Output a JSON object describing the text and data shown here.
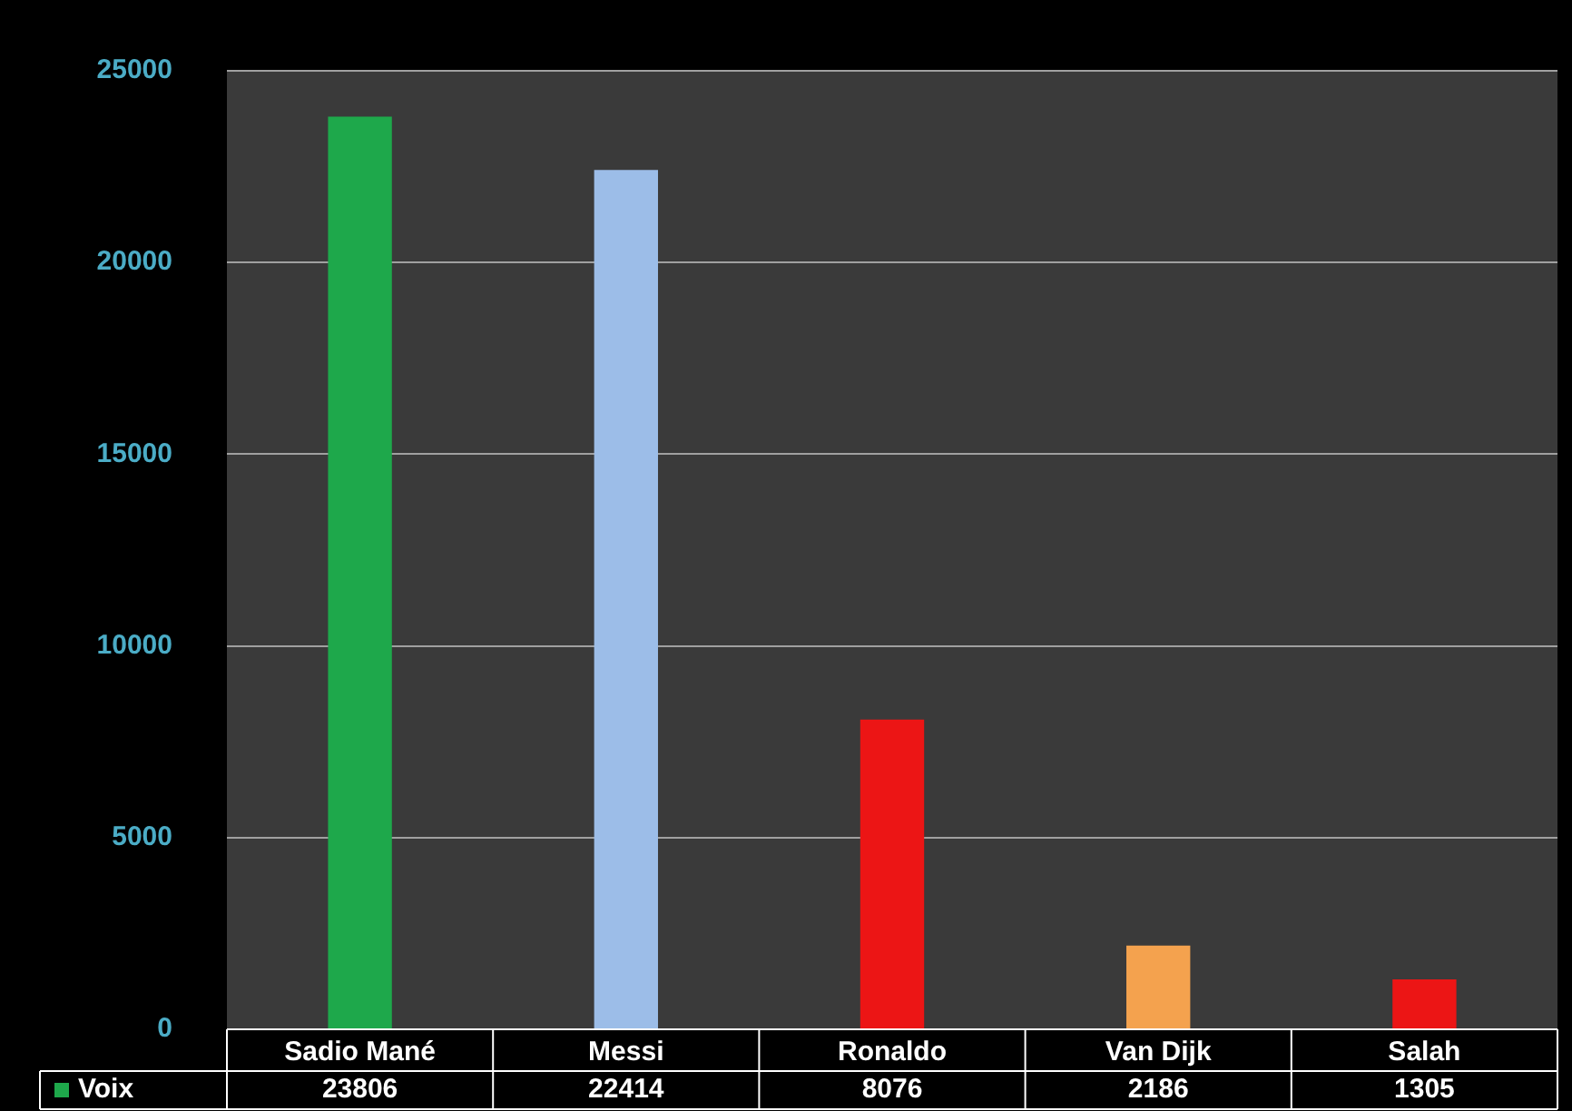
{
  "chart_data": {
    "type": "bar",
    "categories": [
      "Sadio Mané",
      "Messi",
      "Ronaldo",
      "Van Dijk",
      "Salah"
    ],
    "series": [
      {
        "name": "Voix",
        "color": "#1ea84b",
        "colors": [
          "#1ea84b",
          "#9cbde8",
          "#ec1515",
          "#f4a24e",
          "#ec1515"
        ],
        "values": [
          23806,
          22414,
          8076,
          2186,
          1305
        ]
      }
    ],
    "ylim": [
      0,
      25000
    ],
    "yticks": [
      0,
      5000,
      10000,
      15000,
      20000,
      25000
    ],
    "grid": "y",
    "legend": "bottom left",
    "data_labels": true
  }
}
